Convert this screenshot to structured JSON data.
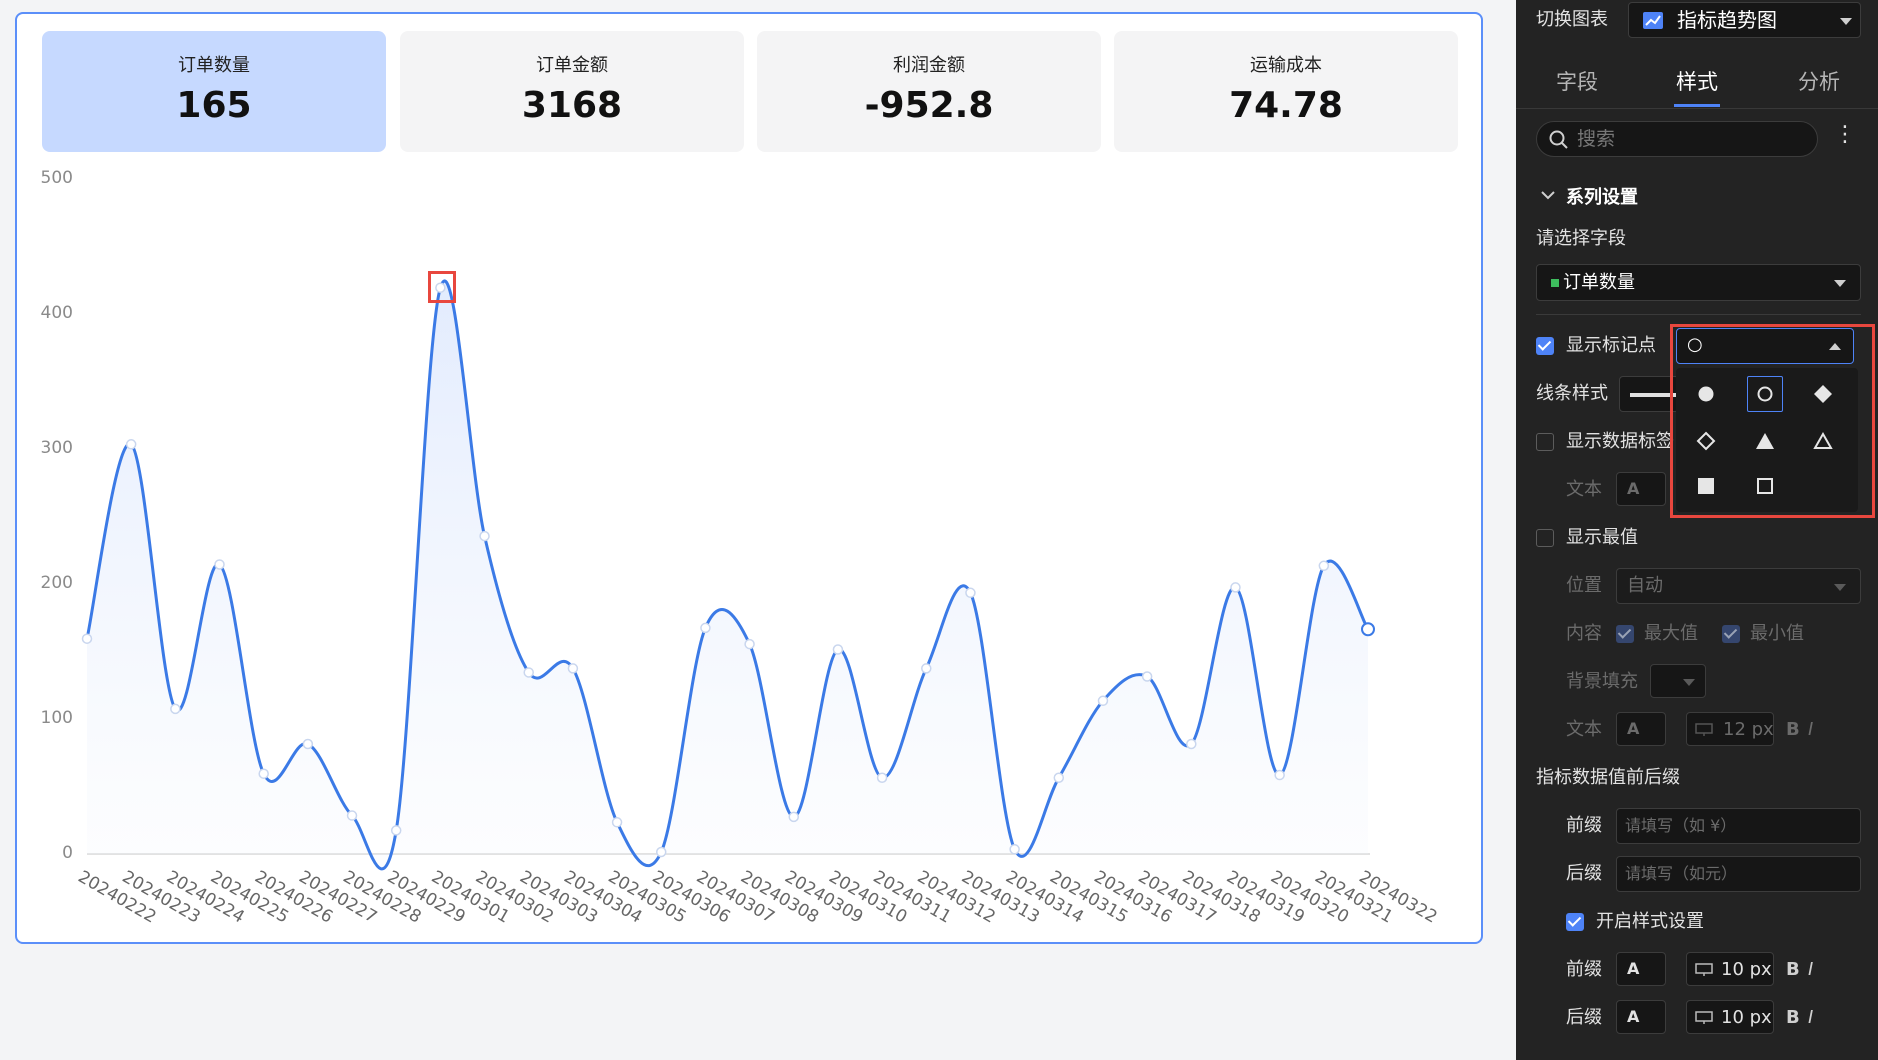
{
  "kpis": [
    {
      "label": "订单数量",
      "value": "165"
    },
    {
      "label": "订单金额",
      "value": "3168"
    },
    {
      "label": "利润金额",
      "value": "-952.8"
    },
    {
      "label": "运输成本",
      "value": "74.78"
    }
  ],
  "chart_data": {
    "type": "line",
    "title": "",
    "xlabel": "",
    "ylabel": "",
    "ylim": [
      0,
      500
    ],
    "yticks": [
      0,
      100,
      200,
      300,
      400,
      500
    ],
    "smooth": true,
    "area_fill": true,
    "grid": false,
    "categories": [
      "20240222",
      "20240223",
      "20240224",
      "20240225",
      "20240226",
      "20240227",
      "20240228",
      "20240229",
      "20240301",
      "20240302",
      "20240303",
      "20240304",
      "20240305",
      "20240306",
      "20240307",
      "20240308",
      "20240309",
      "20240310",
      "20240311",
      "20240312",
      "20240313",
      "20240314",
      "20240315",
      "20240316",
      "20240317",
      "20240318",
      "20240319",
      "20240320",
      "20240321",
      "20240322"
    ],
    "series": [
      {
        "values": [
          158,
          302,
          106,
          213,
          58,
          80,
          27,
          16,
          418,
          234,
          133,
          136,
          22,
          0,
          166,
          154,
          26,
          150,
          55,
          136,
          192,
          2,
          55,
          112,
          130,
          80,
          196,
          57,
          212,
          165
        ],
        "color": "#3b7ae6",
        "marker": "circle-hollow"
      }
    ]
  },
  "panel": {
    "switch_label": "切换图表",
    "chart_type": "指标趋势图",
    "tabs": [
      "字段",
      "样式",
      "分析"
    ],
    "search_placeholder": "搜索",
    "section_title": "系列设置",
    "select_field_label": "请选择字段",
    "field_value": "订单数量",
    "show_markers": "显示标记点",
    "marker_value": "○",
    "line_style": "线条样式",
    "show_data_labels": "显示数据标签",
    "text": "文本",
    "show_extremes": "显示最值",
    "position": "位置",
    "position_value": "自动",
    "content": "内容",
    "max": "最大值",
    "min": "最小值",
    "bg_fill": "背景填充",
    "text2": "文本",
    "font_glyph": "A",
    "font_size_dim": "12 px",
    "affix_title": "指标数据值前后缀",
    "prefix": "前缀",
    "prefix_placeholder": "请填写（如 ¥）",
    "suffix": "后缀",
    "suffix_placeholder": "请填写（如元）",
    "enable_style": "开启样式设置",
    "prefix2": "前缀",
    "suffix2": "后缀",
    "size_prefix": "10 px",
    "size_suffix": "10 px",
    "bold": "B",
    "italic": "I"
  },
  "colors": {
    "accent": "#4e83f7",
    "line": "#3b7ae6",
    "highlight": "#e8473e"
  }
}
